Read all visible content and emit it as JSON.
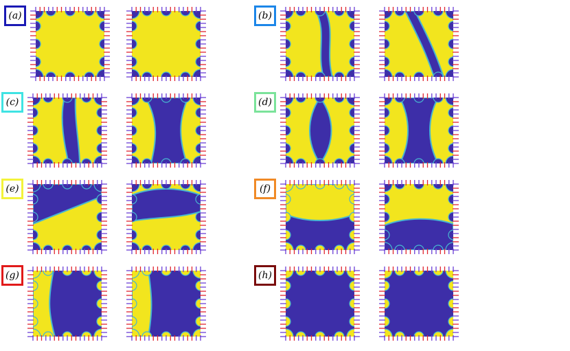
{
  "colors": {
    "yellow": "#f2e51e",
    "purple": "#3d2ea8",
    "cyan": "#47b6d1",
    "arrow_red": "#e0242f",
    "arrow_purple": "#6b3fd6"
  },
  "panels": [
    {
      "label": "(a)",
      "color": "#1a19b4"
    },
    {
      "label": "(b)",
      "color": "#1c86e8"
    },
    {
      "label": "(c)",
      "color": "#3fe3e3"
    },
    {
      "label": "(d)",
      "color": "#7be39a"
    },
    {
      "label": "(e)",
      "color": "#f3f33a"
    },
    {
      "label": "(f)",
      "color": "#f08a26"
    },
    {
      "label": "(g)",
      "color": "#e11a1a"
    },
    {
      "label": "(h)",
      "color": "#7a0c0c"
    }
  ],
  "panel_layout_note": "Each panel shows two square phase-field snapshots with boundary arrows (red/purple)."
}
